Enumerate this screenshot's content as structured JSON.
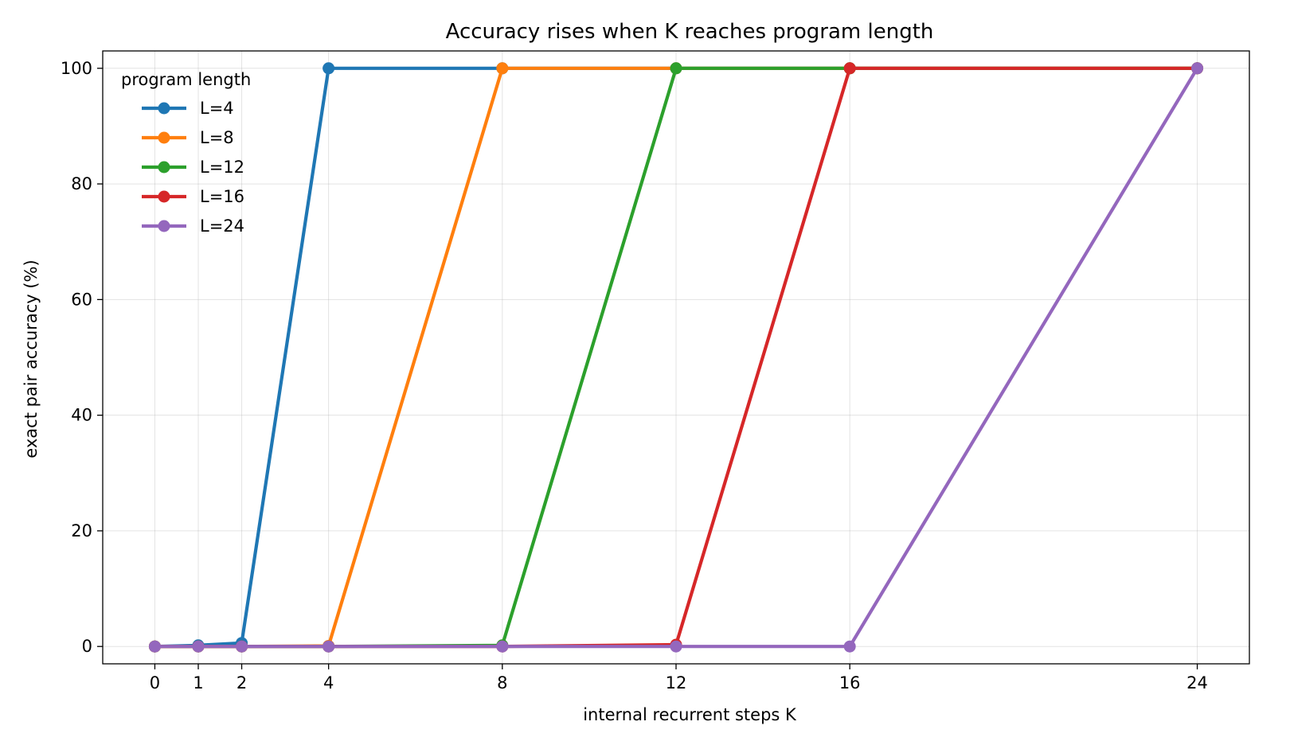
{
  "chart_data": {
    "type": "line",
    "title": "Accuracy rises when K reaches program length",
    "xlabel": "internal recurrent steps K",
    "ylabel": "exact pair accuracy (%)",
    "x": [
      0,
      1,
      2,
      4,
      8,
      12,
      16,
      24
    ],
    "xticks": [
      0,
      1,
      2,
      4,
      8,
      12,
      16,
      24
    ],
    "yticks": [
      0,
      20,
      40,
      60,
      80,
      100
    ],
    "xlim": [
      -1.2,
      25.2
    ],
    "ylim": [
      -3,
      103
    ],
    "grid": true,
    "legend": {
      "title": "program length",
      "placement": "top-left"
    },
    "series": [
      {
        "name": "L=4",
        "color": "#1f77b4",
        "values": [
          0,
          0.2,
          0.6,
          100,
          100,
          100,
          100,
          100
        ]
      },
      {
        "name": "L=8",
        "color": "#ff7f0e",
        "values": [
          0,
          0,
          0,
          0.1,
          100,
          100,
          100,
          100
        ]
      },
      {
        "name": "L=12",
        "color": "#2ca02c",
        "values": [
          0,
          0,
          0,
          0,
          0.2,
          100,
          100,
          100
        ]
      },
      {
        "name": "L=16",
        "color": "#d62728",
        "values": [
          0,
          0,
          0,
          0,
          0,
          0.3,
          100,
          100
        ]
      },
      {
        "name": "L=24",
        "color": "#9467bd",
        "values": [
          0,
          0,
          0,
          0,
          0,
          0,
          0,
          100
        ]
      }
    ]
  }
}
